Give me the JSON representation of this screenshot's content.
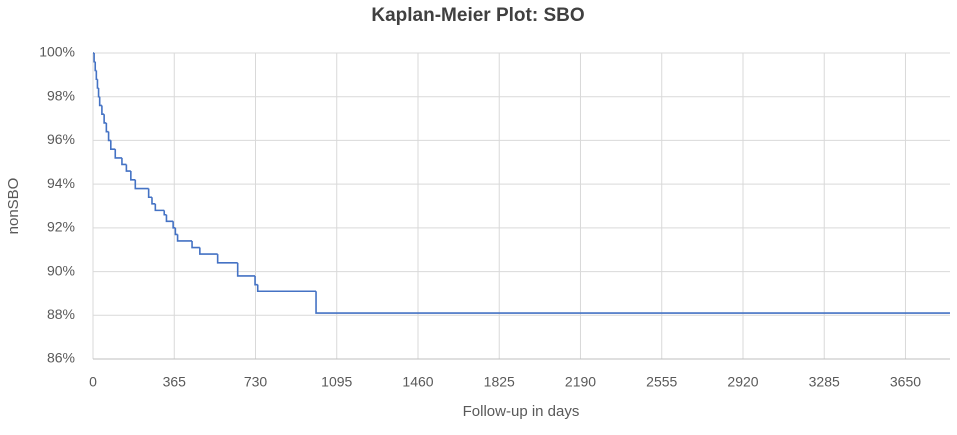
{
  "chart_data": {
    "type": "step",
    "title": "Kaplan-Meier Plot: SBO",
    "x_label": "Follow-up in days",
    "y_label": "nonSBO",
    "x": [
      0,
      5,
      10,
      15,
      20,
      25,
      30,
      40,
      50,
      60,
      70,
      80,
      100,
      130,
      150,
      170,
      190,
      250,
      265,
      280,
      320,
      330,
      360,
      370,
      380,
      445,
      480,
      560,
      650,
      728,
      740,
      1002,
      3850
    ],
    "values": [
      100,
      99.6,
      99.2,
      98.8,
      98.4,
      98.0,
      97.6,
      97.2,
      96.8,
      96.4,
      96.0,
      95.6,
      95.2,
      94.9,
      94.6,
      94.2,
      93.8,
      93.4,
      93.1,
      92.8,
      92.6,
      92.3,
      92.0,
      91.7,
      91.4,
      91.1,
      90.8,
      90.4,
      89.8,
      89.4,
      89.1,
      88.1,
      88.1
    ],
    "color": "#4472c4",
    "xlim": [
      0,
      3850
    ],
    "xticks": [
      0,
      365,
      730,
      1095,
      1460,
      1825,
      2190,
      2555,
      2920,
      3285,
      3650
    ],
    "ylim": [
      86,
      100
    ],
    "yticks": [
      {
        "value": 86,
        "label": "86%"
      },
      {
        "value": 88,
        "label": "88%"
      },
      {
        "value": 90,
        "label": "90%"
      },
      {
        "value": 92,
        "label": "92%"
      },
      {
        "value": 94,
        "label": "94%"
      },
      {
        "value": 96,
        "label": "96%"
      },
      {
        "value": 98,
        "label": "98%"
      },
      {
        "value": 100,
        "label": "100%"
      }
    ],
    "grid": true
  }
}
